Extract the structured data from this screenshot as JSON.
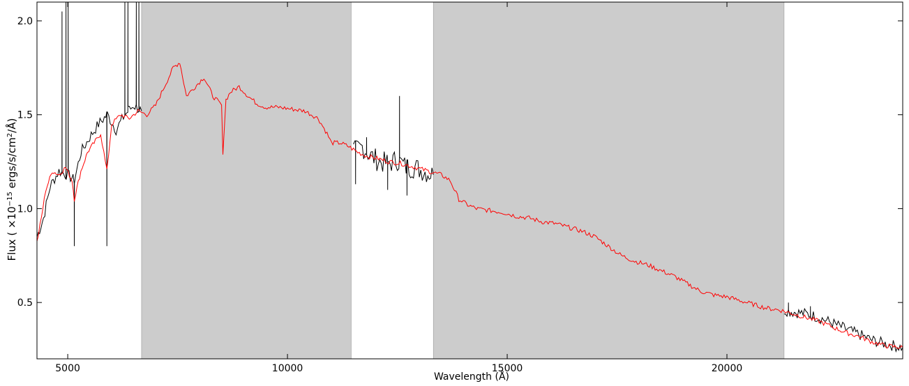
{
  "chart_data": {
    "type": "line",
    "title": "",
    "xlabel": "Wavelength (Å)",
    "ylabel_html": "Flux ( ×10<tspan baseline-shift='super' font-size='10'>−15</tspan> ergs/s/cm<tspan baseline-shift='super' font-size='10'>2</tspan>/Å)",
    "xlim": [
      4300,
      24000
    ],
    "ylim": [
      0.2,
      2.1
    ],
    "xticks": [
      5000,
      10000,
      15000,
      20000
    ],
    "yticks": [
      0.5,
      1.0,
      1.5,
      2.0
    ],
    "xtick_labels": [
      "5000",
      "10000",
      "15000",
      "20000"
    ],
    "ytick_labels": [
      "0.5",
      "1.0",
      "1.5",
      "2.0"
    ],
    "grid": false,
    "shaded_regions": [
      {
        "x0": 6680,
        "x1": 11450,
        "color": "#cccccc"
      },
      {
        "x0": 13320,
        "x1": 21300,
        "color": "#cccccc"
      }
    ],
    "series": [
      {
        "color": "#000000",
        "segments": [
          {
            "x": [
              4300,
              4450,
              4600,
              4800,
              5000,
              5150,
              5300,
              5500,
              5700,
              5900,
              6100,
              6300,
              6500,
              6680
            ],
            "y": [
              0.85,
              0.95,
              1.12,
              1.2,
              1.18,
              1.15,
              1.3,
              1.38,
              1.45,
              1.5,
              1.42,
              1.5,
              1.55,
              1.52
            ],
            "spikes": [
              {
                "x": 4870,
                "y": 2.05
              },
              {
                "x": 4960,
                "y": 2.1
              },
              {
                "x": 5010,
                "y": 2.1
              },
              {
                "x": 5150,
                "y": 0.8
              },
              {
                "x": 5890,
                "y": 0.8
              },
              {
                "x": 6300,
                "y": 2.1
              },
              {
                "x": 6370,
                "y": 2.1
              },
              {
                "x": 6560,
                "y": 2.1
              },
              {
                "x": 6620,
                "y": 2.1
              }
            ]
          },
          {
            "x": [
              11500,
              11700,
              11900,
              12100,
              12300,
              12500,
              12700,
              12900,
              13100,
              13320
            ],
            "y": [
              1.3,
              1.33,
              1.28,
              1.25,
              1.24,
              1.26,
              1.22,
              1.22,
              1.2,
              1.18
            ],
            "spikes": [
              {
                "x": 11550,
                "y": 1.13
              },
              {
                "x": 11800,
                "y": 1.38
              },
              {
                "x": 12280,
                "y": 1.1
              },
              {
                "x": 12550,
                "y": 1.6
              },
              {
                "x": 12720,
                "y": 1.07
              }
            ]
          },
          {
            "x": [
              21300,
              21500,
              21800,
              22100,
              22400,
              22700,
              23000,
              23300,
              23600,
              24000
            ],
            "y": [
              0.46,
              0.45,
              0.44,
              0.42,
              0.39,
              0.36,
              0.33,
              0.3,
              0.28,
              0.26
            ],
            "spikes": [
              {
                "x": 21400,
                "y": 0.5
              },
              {
                "x": 21900,
                "y": 0.48
              }
            ]
          }
        ]
      },
      {
        "color": "#ff0000",
        "x": [
          4300,
          4400,
          4500,
          4650,
          4800,
          4950,
          5100,
          5150,
          5300,
          5450,
          5600,
          5750,
          5890,
          6000,
          6200,
          6400,
          6600,
          6800,
          7000,
          7200,
          7400,
          7550,
          7700,
          7900,
          8100,
          8300,
          8500,
          8530,
          8600,
          8700,
          8900,
          9100,
          9300,
          9500,
          9800,
          10100,
          10400,
          10700,
          10900,
          11000,
          11200,
          11400,
          11600,
          11800,
          12000,
          12300,
          12600,
          12900,
          13200,
          13500,
          13700,
          13900,
          14100,
          14300,
          14600,
          14900,
          15200,
          15500,
          15800,
          16100,
          16400,
          16700,
          17000,
          17300,
          17600,
          17900,
          18200,
          18500,
          18800,
          19100,
          19400,
          19700,
          20000,
          20300,
          20600,
          20900,
          21200,
          21500,
          21800,
          22100,
          22400,
          22700,
          23000,
          23300,
          23600,
          24000
        ],
        "y": [
          0.82,
          0.95,
          1.1,
          1.2,
          1.18,
          1.22,
          1.15,
          1.05,
          1.2,
          1.3,
          1.35,
          1.4,
          1.2,
          1.45,
          1.5,
          1.48,
          1.52,
          1.5,
          1.55,
          1.65,
          1.75,
          1.78,
          1.6,
          1.65,
          1.7,
          1.6,
          1.55,
          1.3,
          1.58,
          1.62,
          1.65,
          1.6,
          1.56,
          1.54,
          1.54,
          1.53,
          1.52,
          1.48,
          1.4,
          1.35,
          1.35,
          1.33,
          1.3,
          1.28,
          1.27,
          1.25,
          1.24,
          1.22,
          1.2,
          1.18,
          1.15,
          1.05,
          1.02,
          1.0,
          0.99,
          0.98,
          0.96,
          0.95,
          0.93,
          0.92,
          0.9,
          0.88,
          0.85,
          0.8,
          0.75,
          0.72,
          0.7,
          0.67,
          0.64,
          0.6,
          0.56,
          0.54,
          0.53,
          0.51,
          0.49,
          0.47,
          0.46,
          0.44,
          0.42,
          0.4,
          0.37,
          0.34,
          0.32,
          0.29,
          0.27,
          0.26
        ]
      }
    ]
  }
}
